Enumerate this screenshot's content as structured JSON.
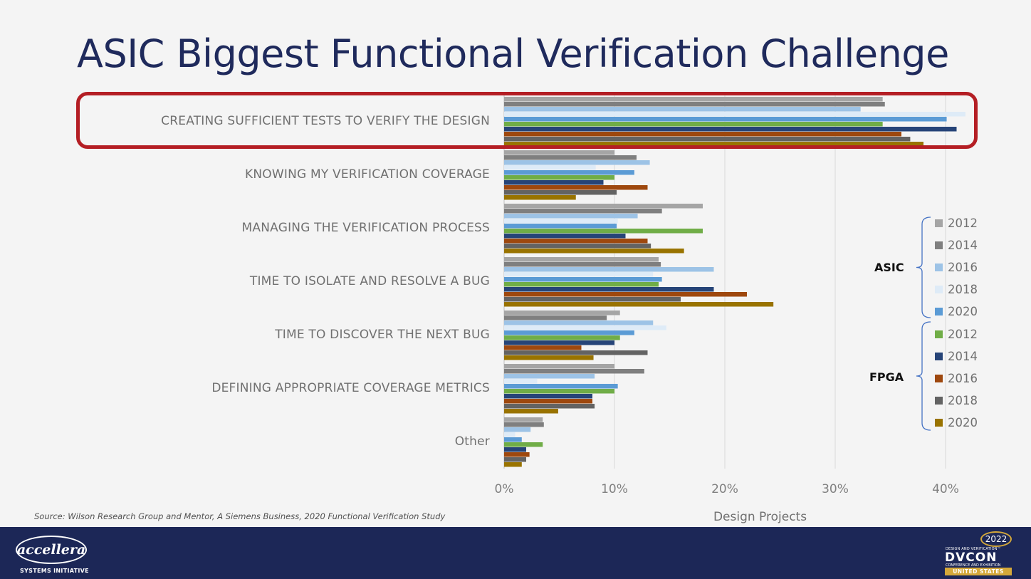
{
  "title": "ASIC Biggest Functional Verification Challenge",
  "source": "Source:  Wilson Research Group and Mentor, A Siemens Business, 2020 Functional Verification Study",
  "legend": {
    "groups": [
      {
        "name": "ASIC",
        "series_range": [
          0,
          4
        ]
      },
      {
        "name": "FPGA",
        "series_range": [
          5,
          9
        ]
      }
    ]
  },
  "footer": {
    "accellera_logo": "accellera",
    "accellera_sub": "SYSTEMS INITIATIVE",
    "dvcon_year": "2022",
    "dvcon_tag": "DESIGN AND VERIFICATION™",
    "dvcon_word": "DVCON",
    "dvcon_conf": "CONFERENCE AND EXHIBITION",
    "dvcon_us": "UNITED STATES"
  },
  "colors": {
    "highlight": "#b41e24",
    "footer_bg": "#1c2757",
    "title": "#1f2a5c",
    "gridline": "#d9d9d9"
  },
  "chart_data": {
    "type": "bar",
    "orientation": "horizontal",
    "categories": [
      "CREATING SUFFICIENT TESTS TO VERIFY THE DESIGN",
      "KNOWING MY VERIFICATION COVERAGE",
      "MANAGING THE VERIFICATION PROCESS",
      "TIME TO ISOLATE AND RESOLVE A BUG",
      "TIME TO DISCOVER THE NEXT BUG",
      "DEFINING APPROPRIATE COVERAGE METRICS",
      "Other"
    ],
    "highlighted_category": "CREATING SUFFICIENT TESTS TO VERIFY THE DESIGN",
    "series": [
      {
        "name": "2012",
        "group": "ASIC",
        "color": "#a5a5a5",
        "values": [
          34.3,
          10,
          18,
          14,
          10.5,
          10,
          3.5
        ]
      },
      {
        "name": "2014",
        "group": "ASIC",
        "color": "#7f7f7f",
        "values": [
          34.5,
          12,
          14.3,
          14.2,
          9.3,
          12.7,
          3.6
        ]
      },
      {
        "name": "2016",
        "group": "ASIC",
        "color": "#9dc3e6",
        "values": [
          32.3,
          13.2,
          12.1,
          19,
          13.5,
          8.2,
          2.4
        ]
      },
      {
        "name": "2018",
        "group": "ASIC",
        "color": "#deebf7",
        "values": [
          41.8,
          8.3,
          10.3,
          13.5,
          14.7,
          3,
          1
        ]
      },
      {
        "name": "2020",
        "group": "ASIC",
        "color": "#5b9bd5",
        "values": [
          40.1,
          11.8,
          10.2,
          14.3,
          11.8,
          10.3,
          1.6
        ]
      },
      {
        "name": "2012",
        "group": "FPGA",
        "color": "#70ad47",
        "values": [
          34.3,
          10,
          18,
          14,
          10.5,
          10,
          3.5
        ]
      },
      {
        "name": "2014",
        "group": "FPGA",
        "color": "#264478",
        "values": [
          41,
          9,
          11,
          19,
          10,
          8,
          2
        ]
      },
      {
        "name": "2016",
        "group": "FPGA",
        "color": "#9e480e",
        "values": [
          36,
          13,
          13,
          22,
          7,
          8,
          2.3
        ]
      },
      {
        "name": "2018",
        "group": "FPGA",
        "color": "#636363",
        "values": [
          36.8,
          10.2,
          13.3,
          16,
          13,
          8.2,
          2
        ]
      },
      {
        "name": "2020",
        "group": "FPGA",
        "color": "#997300",
        "values": [
          38,
          6.5,
          16.3,
          24.4,
          8.1,
          4.9,
          1.6
        ]
      }
    ],
    "xticks": [
      "0%",
      "10%",
      "20%",
      "30%",
      "40%"
    ],
    "xlim": [
      0,
      42
    ],
    "xlabel": "Design Projects",
    "grid": true,
    "legend_position": "right"
  }
}
